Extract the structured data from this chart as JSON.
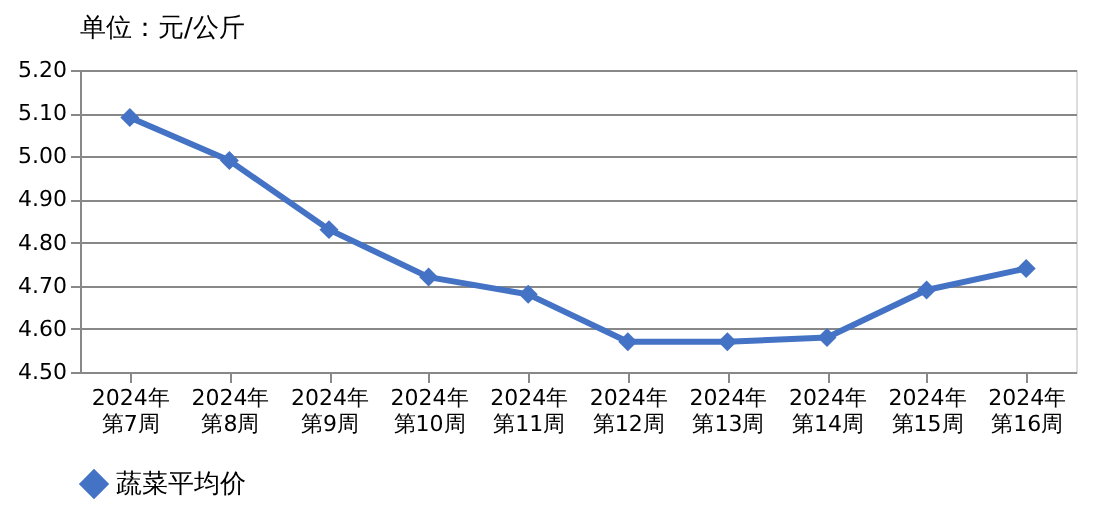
{
  "chart_data": {
    "type": "line",
    "title": "单位：元/公斤",
    "categories": [
      "2024年第7周",
      "2024年第8周",
      "2024年第9周",
      "2024年第10周",
      "2024年第11周",
      "2024年第12周",
      "2024年第13周",
      "2024年第14周",
      "2024年第15周",
      "2024年第16周"
    ],
    "series": [
      {
        "name": "蔬菜平均价",
        "color": "#4472c4",
        "values": [
          5.09,
          4.99,
          4.83,
          4.72,
          4.68,
          4.57,
          4.57,
          4.58,
          4.69,
          4.74
        ]
      }
    ],
    "ylim": [
      4.5,
      5.2
    ],
    "yticks": [
      {
        "value": 4.5,
        "label": "4.50"
      },
      {
        "value": 4.6,
        "label": "4.60"
      },
      {
        "value": 4.7,
        "label": "4.70"
      },
      {
        "value": 4.8,
        "label": "4.80"
      },
      {
        "value": 4.9,
        "label": "4.90"
      },
      {
        "value": 5.0,
        "label": "5.00"
      },
      {
        "value": 5.1,
        "label": "5.10"
      },
      {
        "value": 5.2,
        "label": "5.20"
      }
    ],
    "grid": "y",
    "legend": "bottom",
    "marker": "diamond",
    "line_style": "solid"
  }
}
